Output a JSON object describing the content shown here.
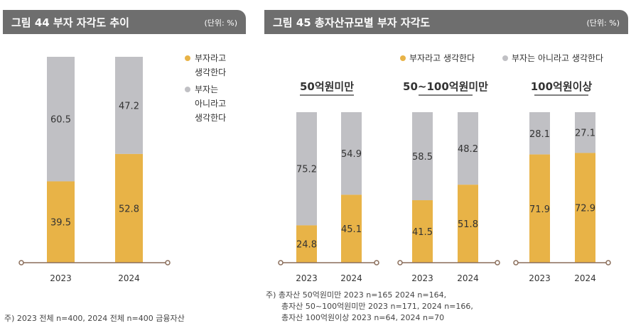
{
  "figure44": {
    "title": "그림 44  부자 자각도 추이",
    "unit": "(단위: %)",
    "footnote": "주) 2023 전체 n=400, 2024 전체 n=400 금융자산"
  },
  "figure45": {
    "title": "그림 45  총자산규모별 부자 자각도",
    "unit": "(단위: %)",
    "footnote_lines": [
      "주) 총자산 50억원미만 2023 n=165 2024 n=164,",
      "총자산 50~100억원미만 2023 n=171, 2024 n=166,",
      "총자산 100억원이상 2023 n=64, 2024 n=70"
    ]
  },
  "colors": {
    "rich": "#e8b347",
    "not_rich": "#c0c0c4",
    "axis": "#8a6d5a",
    "label": "#333333"
  },
  "chart_data": [
    {
      "type": "bar",
      "stacked": true,
      "title": "부자 자각도 추이",
      "categories": [
        "2023",
        "2024"
      ],
      "series": [
        {
          "name": "부자는 아니라고 생각한다",
          "legend_lines": [
            "부자는",
            "아니라고",
            "생각한다"
          ],
          "values": [
            60.5,
            47.2
          ]
        },
        {
          "name": "부자라고 생각한다",
          "legend_lines": [
            "부자라고",
            "생각한다"
          ],
          "values": [
            39.5,
            52.8
          ]
        }
      ],
      "ylim": [
        0,
        100
      ],
      "legend": "right"
    },
    {
      "type": "bar",
      "stacked": true,
      "title": "총자산규모별 부자 자각도",
      "groups": [
        {
          "name": "50억원미만",
          "categories": [
            "2023",
            "2024"
          ],
          "rich": [
            24.8,
            45.1
          ],
          "not_rich": [
            75.2,
            54.9
          ]
        },
        {
          "name": "50~100억원미만",
          "categories": [
            "2023",
            "2024"
          ],
          "rich": [
            41.5,
            51.8
          ],
          "not_rich": [
            58.5,
            48.2
          ]
        },
        {
          "name": "100억원이상",
          "categories": [
            "2023",
            "2024"
          ],
          "rich": [
            71.9,
            72.9
          ],
          "not_rich": [
            28.1,
            27.1
          ]
        }
      ],
      "legend_labels": {
        "rich": "부자라고 생각한다",
        "not_rich": "부자는 아니라고 생각한다"
      },
      "ylim": [
        0,
        100
      ],
      "legend": "top-right"
    }
  ]
}
